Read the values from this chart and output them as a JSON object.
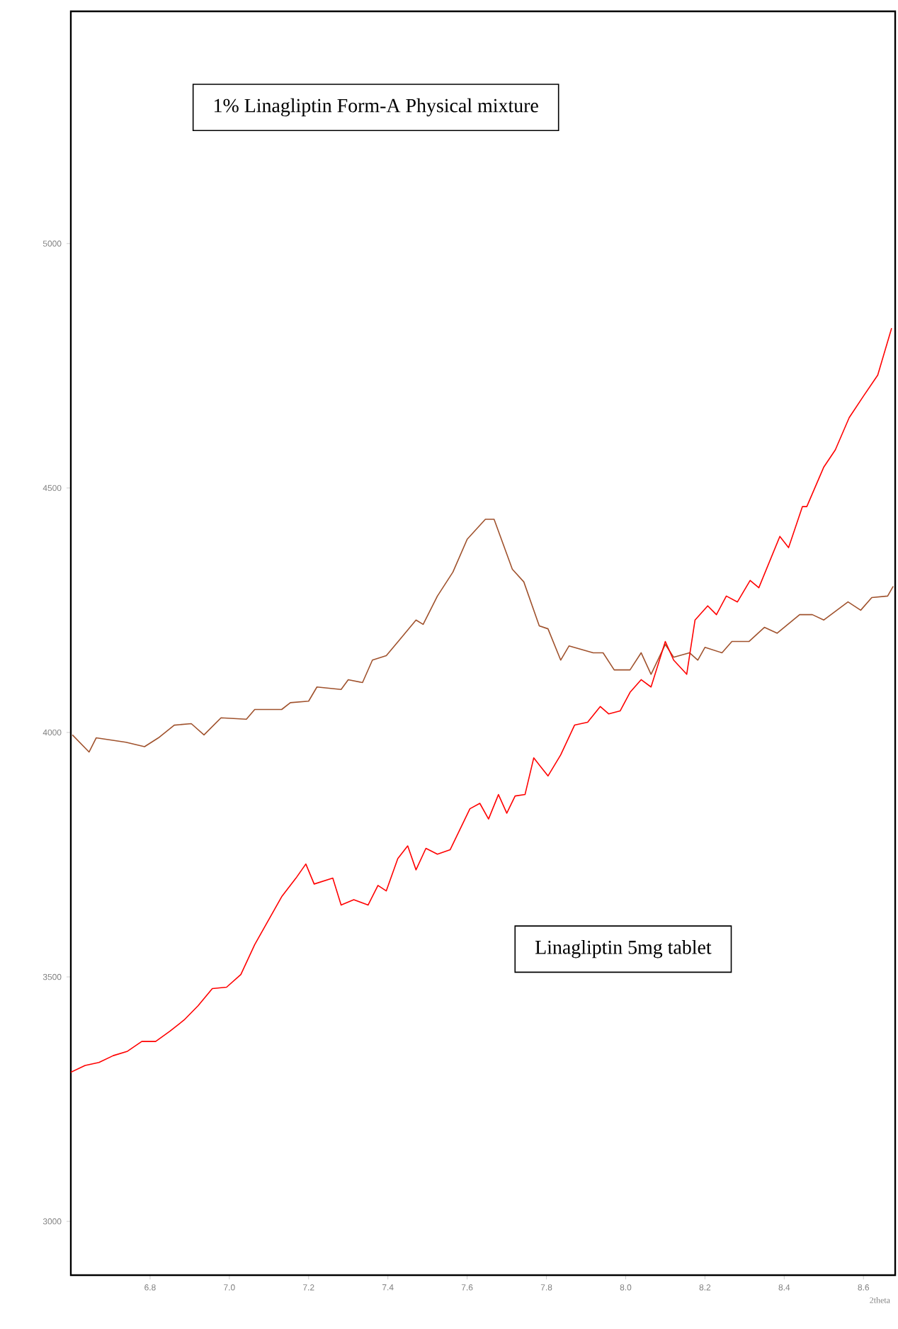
{
  "chart_data": {
    "type": "line",
    "xlabel": "2theta",
    "annotations": [
      "1% Linagliptin Form-A Physical mixture",
      "Linagliptin 5mg tablet"
    ],
    "xlim": [
      6.6,
      8.68
    ],
    "ylim": [
      2890,
      5475
    ],
    "xticks": [
      6.8,
      {
        "value": 7.0,
        "label": "7.0"
      },
      7.2,
      7.4,
      7.6,
      7.8,
      {
        "value": 8.0,
        "label": "8.0"
      },
      8.2,
      8.4,
      8.6
    ],
    "yticks": [
      3000,
      3500,
      4000,
      4500,
      5000
    ],
    "series": [
      {
        "color": "#a0522d",
        "x": [
          6.604,
          6.646,
          6.664,
          6.739,
          6.786,
          6.821,
          6.861,
          6.904,
          6.936,
          6.979,
          7.043,
          7.064,
          7.132,
          7.154,
          7.2,
          7.221,
          7.282,
          7.3,
          7.336,
          7.361,
          7.396,
          7.429,
          7.471,
          7.489,
          7.525,
          7.564,
          7.6,
          7.646,
          7.668,
          7.714,
          7.743,
          7.782,
          7.804,
          7.836,
          7.857,
          7.918,
          7.943,
          7.971,
          8.011,
          8.039,
          8.064,
          8.1,
          8.121,
          8.161,
          8.182,
          8.2,
          8.243,
          8.268,
          8.311,
          8.35,
          8.382,
          8.439,
          8.471,
          8.5,
          8.561,
          8.593,
          8.621,
          8.661,
          8.675
        ],
        "values": [
          3995,
          3960,
          3989,
          3980,
          3971,
          3989,
          4015,
          4018,
          3995,
          4030,
          4027,
          4047,
          4047,
          4061,
          4064,
          4093,
          4088,
          4108,
          4102,
          4148,
          4157,
          4189,
          4230,
          4221,
          4279,
          4328,
          4395,
          4436,
          4436,
          4334,
          4308,
          4218,
          4212,
          4148,
          4177,
          4163,
          4163,
          4128,
          4128,
          4163,
          4119,
          4180,
          4154,
          4163,
          4148,
          4174,
          4163,
          4186,
          4186,
          4215,
          4203,
          4241,
          4241,
          4230,
          4267,
          4250,
          4276,
          4279,
          4299
        ]
      },
      {
        "color": "#ff0000",
        "x": [
          6.6,
          6.636,
          6.671,
          6.707,
          6.743,
          6.779,
          6.814,
          6.85,
          6.886,
          6.921,
          6.957,
          6.993,
          7.029,
          7.064,
          7.132,
          7.168,
          7.193,
          7.214,
          7.261,
          7.282,
          7.314,
          7.35,
          7.375,
          7.396,
          7.425,
          7.45,
          7.471,
          7.496,
          7.525,
          7.557,
          7.607,
          7.632,
          7.654,
          7.679,
          7.7,
          7.721,
          7.746,
          7.768,
          7.804,
          7.836,
          7.871,
          7.904,
          7.936,
          7.957,
          7.986,
          8.011,
          8.039,
          8.064,
          8.1,
          8.121,
          8.154,
          8.175,
          8.207,
          8.229,
          8.254,
          8.282,
          8.314,
          8.336,
          8.389,
          8.411,
          8.446,
          8.457,
          8.5,
          8.529,
          8.564,
          8.6,
          8.636,
          8.671
        ],
        "values": [
          3305,
          3319,
          3325,
          3339,
          3348,
          3368,
          3368,
          3389,
          3412,
          3441,
          3476,
          3479,
          3505,
          3566,
          3664,
          3702,
          3731,
          3690,
          3702,
          3647,
          3658,
          3647,
          3687,
          3676,
          3742,
          3768,
          3719,
          3763,
          3751,
          3760,
          3844,
          3855,
          3823,
          3873,
          3835,
          3870,
          3873,
          3948,
          3911,
          3954,
          4015,
          4021,
          4053,
          4038,
          4044,
          4082,
          4108,
          4093,
          4186,
          4148,
          4119,
          4230,
          4259,
          4241,
          4279,
          4267,
          4311,
          4296,
          4401,
          4378,
          4462,
          4462,
          4543,
          4578,
          4644,
          4688,
          4731,
          4827
        ]
      }
    ]
  }
}
